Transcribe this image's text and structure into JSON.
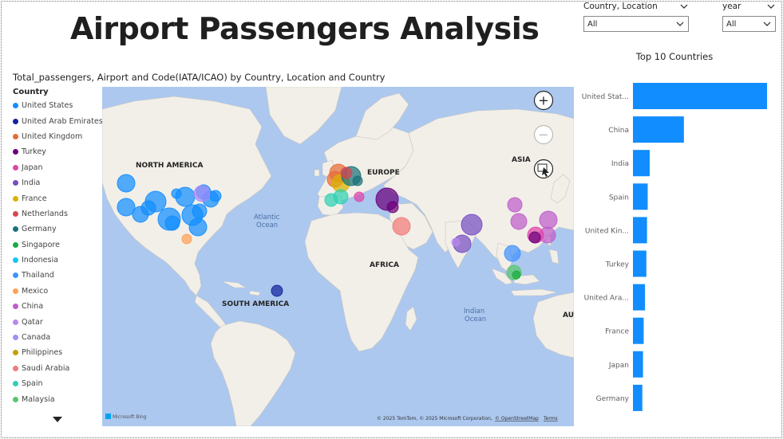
{
  "title": "Airport Passengers Analysis",
  "slicers": [
    {
      "label": "Country, Location",
      "value": "All"
    },
    {
      "label": "year",
      "value": "All"
    }
  ],
  "map": {
    "title": "Total_passengers, Airport and Code(IATA/ICAO) by Country, Location and Country",
    "legend_title": "Country",
    "legend": [
      {
        "name": "United States",
        "color": "#118dff"
      },
      {
        "name": "United Arab Emirates",
        "color": "#12239e"
      },
      {
        "name": "United Kingdom",
        "color": "#e66c37"
      },
      {
        "name": "Turkey",
        "color": "#6b007b"
      },
      {
        "name": "Japan",
        "color": "#e044a7"
      },
      {
        "name": "India",
        "color": "#744ec2"
      },
      {
        "name": "France",
        "color": "#d9b300"
      },
      {
        "name": "Netherlands",
        "color": "#d64550"
      },
      {
        "name": "Germany",
        "color": "#197278"
      },
      {
        "name": "Singapore",
        "color": "#1aab40"
      },
      {
        "name": "Indonesia",
        "color": "#15c6f4"
      },
      {
        "name": "Thailand",
        "color": "#4092ff"
      },
      {
        "name": "Mexico",
        "color": "#ffa058"
      },
      {
        "name": "China",
        "color": "#be5dc9"
      },
      {
        "name": "Qatar",
        "color": "#b887ed"
      },
      {
        "name": "Canada",
        "color": "#a68cf7"
      },
      {
        "name": "Philippines",
        "color": "#c4a000"
      },
      {
        "name": "Saudi Arabia",
        "color": "#f17a7a"
      },
      {
        "name": "Spain",
        "color": "#2ed1b4"
      },
      {
        "name": "Malaysia",
        "color": "#58c76b"
      }
    ],
    "labels": {
      "north_america": "NORTH AMERICA",
      "south_america": "SOUTH AMERICA",
      "europe": "EUROPE",
      "africa": "AFRICA",
      "asia": "ASIA",
      "aus": "AUS",
      "atlantic_1": "Atlantic",
      "atlantic_2": "Ocean",
      "indian_1": "Indian",
      "indian_2": "Ocean"
    },
    "attribution": "© 2025 TomTom, © 2025 Microsoft Corporation,",
    "osm": "© OpenStreetMap",
    "terms": "Terms",
    "brand": "Microsoft Bing",
    "controls": {
      "zoom_in": "+",
      "zoom_out": "−"
    }
  },
  "bar_chart": {
    "title": "Top 10 Countries",
    "color": "#118dff",
    "categories": [
      "United Stat...",
      "China",
      "India",
      "Spain",
      "United Kin...",
      "Turkey",
      "United Ara...",
      "France",
      "Japan",
      "Germany"
    ],
    "values": [
      100,
      38,
      12.5,
      11,
      10.5,
      10,
      9,
      8,
      7.5,
      7
    ]
  },
  "chart_data": {
    "type": "bar",
    "title": "Top 10 Countries",
    "categories": [
      "United Stat...",
      "China",
      "India",
      "Spain",
      "United Kin...",
      "Turkey",
      "United Ara...",
      "France",
      "Japan",
      "Germany"
    ],
    "values": [
      100,
      38,
      12.5,
      11,
      10.5,
      10,
      9,
      8,
      7.5,
      7
    ],
    "orientation": "horizontal",
    "grid": false,
    "legend": "none"
  }
}
